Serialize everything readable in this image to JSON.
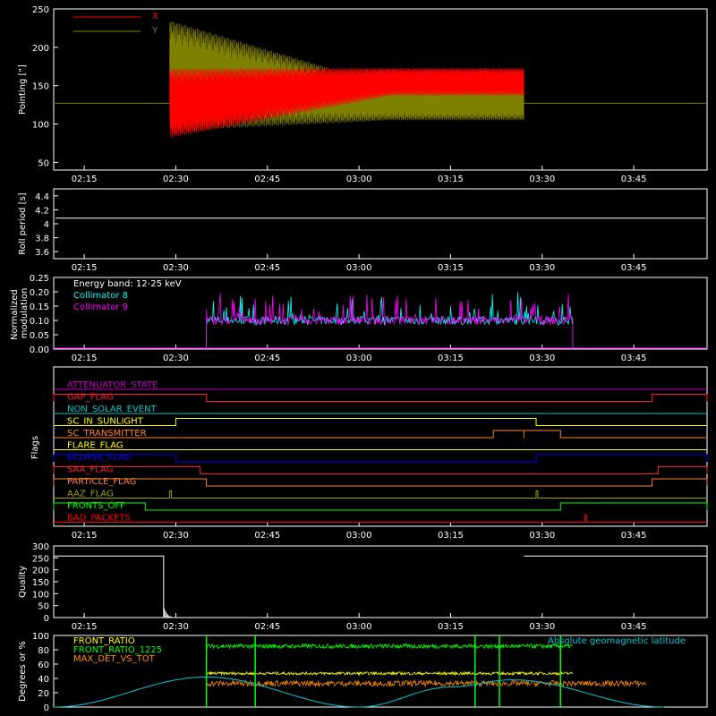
{
  "colors": {
    "background": "#000000",
    "axes": "#ffffff",
    "x_pointing": "#ff0000",
    "y_pointing": "#808000",
    "collimator8": "#00ffff",
    "collimator9": "#ff00ff",
    "front_ratio": "#ffff00",
    "front_ratio_1225": "#00ff00",
    "max_det_vs_tot": "#ff8c00",
    "geomag": "#00c8d8"
  },
  "time_ticks": [
    "02:15",
    "02:30",
    "02:45",
    "03:00",
    "03:15",
    "03:30",
    "03:45"
  ],
  "chart_data": [
    {
      "type": "line",
      "panel": "pointing",
      "ylabel": "Pointing [\"]",
      "xlim": [
        "02:10",
        "03:57"
      ],
      "ylim": [
        40,
        250
      ],
      "yticks": [
        50,
        100,
        150,
        200,
        250
      ],
      "series": [
        {
          "name": "X",
          "color": "#ff0000",
          "center": 127,
          "amp_start": 45,
          "amp_end": 18,
          "drift_end": 28,
          "t_start": "02:29",
          "t_end": "03:27"
        },
        {
          "name": "Y",
          "color": "#808000",
          "center": 163,
          "amp_start": 72,
          "amp_end": 22,
          "drift_end": -36,
          "t_start": "02:29",
          "t_end": "03:27"
        }
      ],
      "reference_line": 127
    },
    {
      "type": "line",
      "panel": "roll_period",
      "ylabel": "Roll period [s]",
      "xlim": [
        "02:10",
        "03:57"
      ],
      "ylim": [
        3.5,
        4.5
      ],
      "yticks": [
        3.6,
        3.8,
        4.0,
        4.2,
        4.4
      ],
      "series": [
        {
          "name": "",
          "color": "#ffffff",
          "value": 4.08
        }
      ]
    },
    {
      "type": "line",
      "panel": "modulation",
      "ylabel": "Normalized modulation",
      "xlim": [
        "02:10",
        "03:57"
      ],
      "ylim": [
        0,
        0.25
      ],
      "yticks": [
        "0.00",
        "0.05",
        "0.10",
        "0.15",
        "0.20",
        "0.25"
      ],
      "annotation": "Energy band: 12-25 keV",
      "series": [
        {
          "name": "Collimator 8",
          "color": "#00ffff",
          "t_start": "02:35",
          "t_end": "03:35",
          "level": 0.1
        },
        {
          "name": "Collimator 9",
          "color": "#ff00ff",
          "t_start": "02:35",
          "t_end": "03:35",
          "level": 0.1
        }
      ]
    },
    {
      "type": "line",
      "panel": "flags",
      "ylabel": "Flags",
      "xlim": [
        "02:10",
        "03:57"
      ],
      "flags": [
        {
          "name": "ATTENUATOR_STATE",
          "color": "#c000c0",
          "high": []
        },
        {
          "name": "GAP_FLAG",
          "color": "#ff2020",
          "high": [
            [
              "02:10",
              "02:35"
            ],
            [
              "03:48",
              "03:57"
            ]
          ]
        },
        {
          "name": "NON_SOLAR_EVENT",
          "color": "#00c8c8",
          "high": []
        },
        {
          "name": "SC_IN_SUNLIGHT",
          "color": "#ffff00",
          "high": [
            [
              "02:30",
              "03:29"
            ]
          ]
        },
        {
          "name": "SC_TRANSMITTER",
          "color": "#ff8030",
          "high": [
            [
              "03:22",
              "03:27"
            ],
            [
              "03:27",
              "03:33"
            ]
          ]
        },
        {
          "name": "FLARE_FLAG",
          "color": "#ffff00",
          "high": []
        },
        {
          "name": "ECLIPSE_FLAG",
          "color": "#0000ff",
          "high": [
            [
              "02:10",
              "02:30"
            ],
            [
              "03:29",
              "03:57"
            ]
          ]
        },
        {
          "name": "SAA_FLAG",
          "color": "#ff2020",
          "high": [
            [
              "02:10",
              "02:34"
            ],
            [
              "03:49",
              "03:57"
            ]
          ]
        },
        {
          "name": "PARTICLE_FLAG",
          "color": "#ff8030",
          "high": [
            [
              "02:10",
              "02:35"
            ],
            [
              "03:48",
              "03:57"
            ]
          ]
        },
        {
          "name": "AAZ_FLAG",
          "color": "#a0a000",
          "high": [
            [
              "02:29",
              "02:29"
            ],
            [
              "03:29",
              "03:29"
            ]
          ]
        },
        {
          "name": "FRONTS_OFF",
          "color": "#00ff00",
          "high": [
            [
              "02:10",
              "02:25"
            ],
            [
              "03:33",
              "03:57"
            ]
          ]
        },
        {
          "name": "BAD_PACKETS",
          "color": "#ff0000",
          "high": [
            [
              "03:37",
              "03:37"
            ]
          ]
        }
      ]
    },
    {
      "type": "line",
      "panel": "quality",
      "ylabel": "Quality",
      "xlim": [
        "02:10",
        "03:57"
      ],
      "ylim": [
        0,
        300
      ],
      "yticks": [
        0,
        50,
        100,
        150,
        200,
        250,
        300
      ],
      "series": [
        {
          "name": "",
          "color": "#ffffff",
          "segments": [
            [
              [
                "02:10",
                258
              ],
              [
                "02:28",
                258
              ]
            ],
            [
              [
                "03:27",
                258
              ],
              [
                "03:57",
                258
              ]
            ]
          ]
        }
      ]
    },
    {
      "type": "line",
      "panel": "ratios",
      "ylabel": "Degrees or %",
      "xlim": [
        "02:10",
        "03:57"
      ],
      "ylim": [
        0,
        100
      ],
      "yticks": [
        0,
        20,
        40,
        60,
        80,
        100
      ],
      "annotation": "Absolute geomagnetic latitude",
      "series": [
        {
          "name": "FRONT_RATIO",
          "color": "#ffff00",
          "level": 47,
          "t_start": "02:35",
          "t_end": "03:35"
        },
        {
          "name": "FRONT_RATIO_1225",
          "color": "#00ff00",
          "level": 85,
          "t_start": "02:35",
          "t_end": "03:35"
        },
        {
          "name": "MAX_DET_VS_TOT",
          "color": "#ff8c00",
          "level": 33,
          "t_start": "02:35",
          "t_end": "03:47"
        },
        {
          "name": "Absolute geomagnetic latitude",
          "color": "#00c8d8",
          "curve": [
            [
              "02:10",
              0
            ],
            [
              "02:35",
              42
            ],
            [
              "03:00",
              0
            ],
            [
              "03:15",
              28
            ],
            [
              "03:25",
              38
            ],
            [
              "03:50",
              0
            ]
          ]
        }
      ]
    }
  ]
}
